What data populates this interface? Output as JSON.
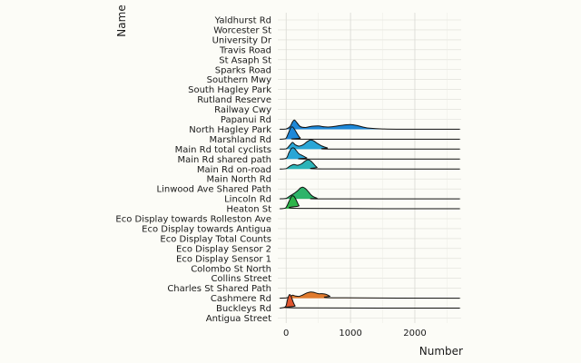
{
  "chart_data": {
    "type": "ridgeline",
    "xlabel": "Number",
    "ylabel": "Name",
    "xlim": [
      -130,
      2720
    ],
    "xticks": [
      0,
      1000,
      2000
    ],
    "xtick_labels": [
      "0",
      "1000",
      "2000"
    ],
    "grid": true,
    "categories": [
      "Yaldhurst Rd",
      "Worcester St",
      "University Dr",
      "Travis Road",
      "St Asaph St",
      "Sparks Road",
      "Southern Mwy",
      "South Hagley Park",
      "Rutland Reserve",
      "Railway Cwy",
      "Papanui Rd",
      "North Hagley Park",
      "Marshland Rd",
      "Main Rd total cyclists",
      "Main Rd shared path",
      "Main Rd on-road",
      "Main North Rd",
      "Linwood Ave Shared Path",
      "Lincoln Rd",
      "Heaton St",
      "Eco Display towards Rolleston Ave",
      "Eco Display towards Antigua",
      "Eco Display Total Counts",
      "Eco Display Sensor 2",
      "Eco Display Sensor 1",
      "Colombo St North",
      "Collins Street",
      "Charles St Shared Path",
      "Cashmere Rd",
      "Buckleys Rd",
      "Antigua Street"
    ],
    "series": [
      {
        "name": "North Hagley Park",
        "color": "#1e88d8",
        "x": [
          -100,
          0,
          60,
          100,
          130,
          170,
          220,
          300,
          400,
          500,
          600,
          700,
          800,
          900,
          1000,
          1100,
          1200,
          1300,
          1500,
          1800,
          2700
        ],
        "y": [
          0,
          0.02,
          0.18,
          0.5,
          0.62,
          0.42,
          0.18,
          0.12,
          0.2,
          0.22,
          0.16,
          0.16,
          0.22,
          0.28,
          0.32,
          0.25,
          0.14,
          0.07,
          0.02,
          0,
          0
        ]
      },
      {
        "name": "Marshland Rd",
        "color": "#1e88d8",
        "x": [
          -100,
          -10,
          30,
          70,
          100,
          140,
          180,
          220,
          280,
          2700
        ],
        "y": [
          0,
          0.03,
          0.35,
          0.75,
          0.82,
          0.6,
          0.3,
          0.08,
          0,
          0
        ]
      },
      {
        "name": "Main Rd total cyclists",
        "color": "#2aa6d6",
        "x": [
          -100,
          0,
          60,
          100,
          140,
          200,
          260,
          320,
          380,
          430,
          480,
          560,
          640,
          720,
          2700
        ],
        "y": [
          0,
          0.02,
          0.28,
          0.45,
          0.3,
          0.2,
          0.28,
          0.48,
          0.62,
          0.55,
          0.4,
          0.2,
          0.08,
          0.01,
          0
        ]
      },
      {
        "name": "Main Rd shared path",
        "color": "#2aa6d6",
        "x": [
          -100,
          0,
          40,
          80,
          120,
          160,
          200,
          260,
          320,
          380,
          2700
        ],
        "y": [
          0,
          0.05,
          0.4,
          0.7,
          0.74,
          0.55,
          0.35,
          0.22,
          0.08,
          0,
          0
        ]
      },
      {
        "name": "Main Rd on-road",
        "color": "#2cb4b8",
        "x": [
          -100,
          0,
          60,
          120,
          180,
          240,
          300,
          340,
          380,
          420,
          480,
          560,
          2700
        ],
        "y": [
          0,
          0.03,
          0.2,
          0.3,
          0.25,
          0.35,
          0.55,
          0.62,
          0.55,
          0.38,
          0.12,
          0.01,
          0
        ]
      },
      {
        "name": "Lincoln Rd",
        "color": "#2db46a",
        "x": [
          -100,
          0,
          60,
          120,
          180,
          220,
          260,
          300,
          340,
          380,
          420,
          480,
          560,
          2700
        ],
        "y": [
          0,
          0.03,
          0.2,
          0.35,
          0.55,
          0.72,
          0.78,
          0.68,
          0.5,
          0.3,
          0.15,
          0.04,
          0,
          0
        ]
      },
      {
        "name": "Heaton St",
        "color": "#2db44a",
        "x": [
          -100,
          -10,
          40,
          80,
          110,
          140,
          170,
          200,
          240,
          2700
        ],
        "y": [
          0,
          0.05,
          0.45,
          0.8,
          0.86,
          0.72,
          0.45,
          0.2,
          0.03,
          0
        ]
      },
      {
        "name": "Cashmere Rd",
        "color": "#e07a2e",
        "x": [
          -100,
          0,
          60,
          100,
          140,
          200,
          260,
          320,
          380,
          440,
          500,
          560,
          620,
          680,
          760,
          2700
        ],
        "y": [
          0,
          0.02,
          0.1,
          0.2,
          0.15,
          0.12,
          0.22,
          0.35,
          0.42,
          0.38,
          0.3,
          0.3,
          0.26,
          0.14,
          0.03,
          0
        ]
      },
      {
        "name": "Buckleys Rd",
        "color": "#e0552e",
        "x": [
          -100,
          -10,
          20,
          50,
          80,
          110,
          140,
          180,
          2700
        ],
        "y": [
          0,
          0.1,
          0.55,
          0.9,
          0.75,
          0.4,
          0.15,
          0.02,
          0
        ]
      }
    ]
  }
}
